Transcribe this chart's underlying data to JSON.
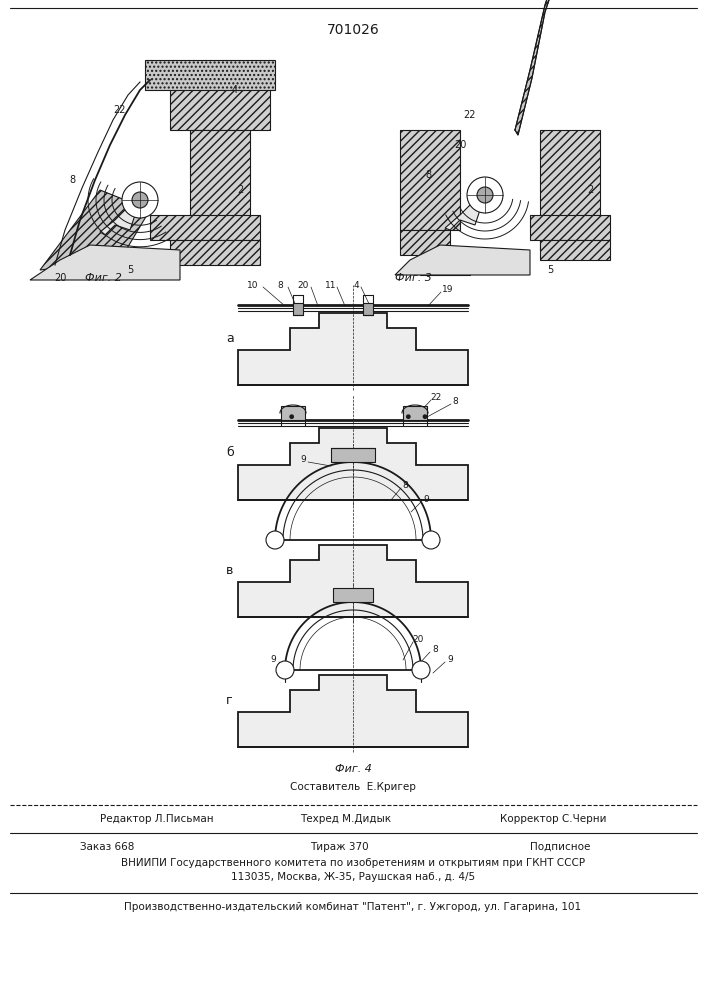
{
  "patent_number": "701026",
  "fig2_label": "Фиг. 2",
  "fig3_label": "Фиг. 3",
  "fig4_label": "Фиг. 4",
  "sestavitel_line": "Составитель  Е.Кригер",
  "editor_label": "Редактор Л.Письман",
  "tekhred_label": "Техред М.Дидык",
  "korrektor_label": "Корректор С.Черни",
  "zakaz_label": "Заказ 668",
  "tirazh_label": "Тираж 370",
  "podpisnoe_label": "Подписное",
  "vnipi_line1": "ВНИИПИ Государственного комитета по изобретениям и открытиям при ГКНТ СССР",
  "vnipi_line2": "113035, Москва, Ж-35, Раушская наб., д. 4/5",
  "publisher_line": "Производственно-издательский комбинат \"Патент\", г. Ужгород, ул. Гагарина, 101",
  "bg_color": "#ffffff",
  "line_color": "#1a1a1a"
}
